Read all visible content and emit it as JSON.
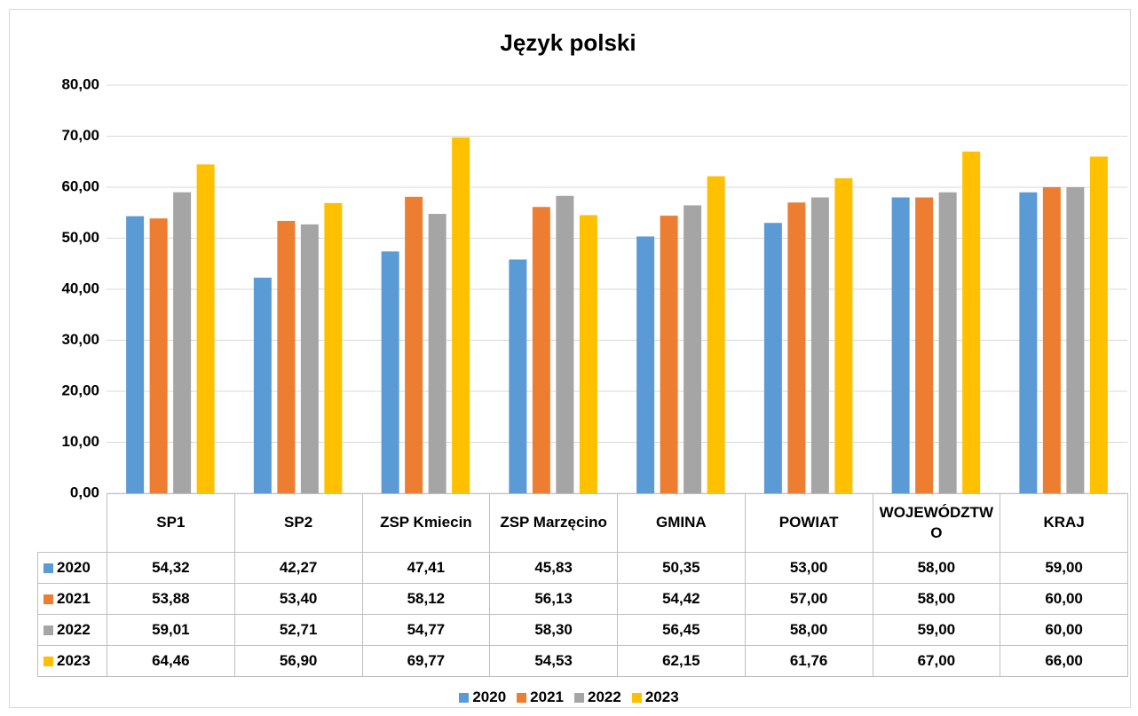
{
  "chart_data": {
    "type": "bar",
    "title": "Język polski",
    "categories": [
      "SP1",
      "SP2",
      "ZSP Kmiecin",
      "ZSP Marzęcino",
      "GMINA",
      "POWIAT",
      "WOJEWÓDZTWO",
      "KRAJ"
    ],
    "series": [
      {
        "name": "2020",
        "color": "#5b9bd5",
        "values": [
          54.32,
          42.27,
          47.41,
          45.83,
          50.35,
          53.0,
          58.0,
          59.0
        ],
        "value_labels": [
          "54,32",
          "42,27",
          "47,41",
          "45,83",
          "50,35",
          "53,00",
          "58,00",
          "59,00"
        ]
      },
      {
        "name": "2021",
        "color": "#ed7d31",
        "values": [
          53.88,
          53.4,
          58.12,
          56.13,
          54.42,
          57.0,
          58.0,
          60.0
        ],
        "value_labels": [
          "53,88",
          "53,40",
          "58,12",
          "56,13",
          "54,42",
          "57,00",
          "58,00",
          "60,00"
        ]
      },
      {
        "name": "2022",
        "color": "#a5a5a5",
        "values": [
          59.01,
          52.71,
          54.77,
          58.3,
          56.45,
          58.0,
          59.0,
          60.0
        ],
        "value_labels": [
          "59,01",
          "52,71",
          "54,77",
          "58,30",
          "56,45",
          "58,00",
          "59,00",
          "60,00"
        ]
      },
      {
        "name": "2023",
        "color": "#ffc000",
        "values": [
          64.46,
          56.9,
          69.77,
          54.53,
          62.15,
          61.76,
          67.0,
          66.0
        ],
        "value_labels": [
          "64,46",
          "56,90",
          "69,77",
          "54,53",
          "62,15",
          "61,76",
          "67,00",
          "66,00"
        ]
      }
    ],
    "ylim": [
      0,
      80
    ],
    "yticks": [
      {
        "value": 0,
        "label": "0,00"
      },
      {
        "value": 10,
        "label": "10,00"
      },
      {
        "value": 20,
        "label": "20,00"
      },
      {
        "value": 30,
        "label": "30,00"
      },
      {
        "value": 40,
        "label": "40,00"
      },
      {
        "value": 50,
        "label": "50,00"
      },
      {
        "value": 60,
        "label": "60,00"
      },
      {
        "value": 70,
        "label": "70,00"
      },
      {
        "value": 80,
        "label": "80,00"
      }
    ],
    "grid": true,
    "legend": "bottom"
  }
}
